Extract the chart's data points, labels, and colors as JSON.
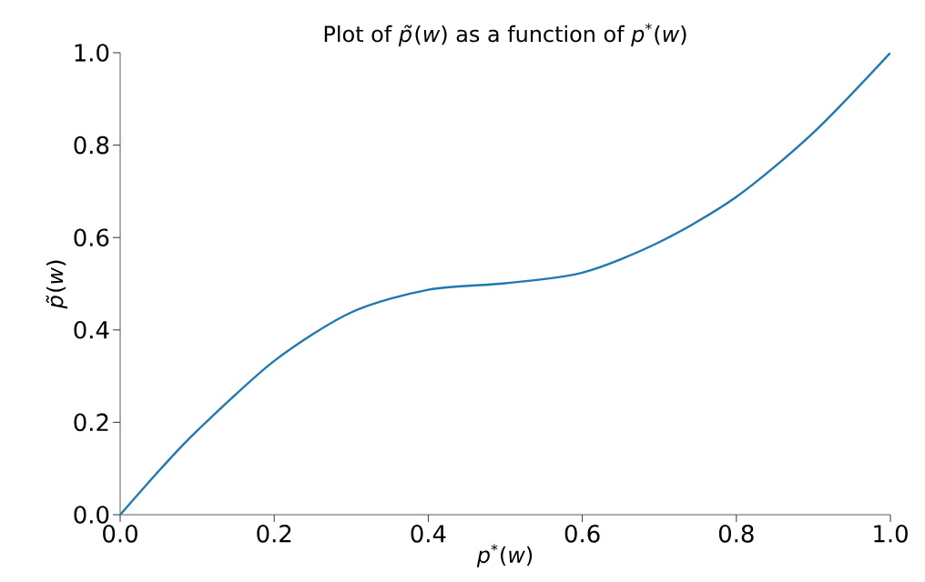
{
  "chart_data": {
    "type": "line",
    "title": "Plot of *p̃*(*w*) as a function of *p*$^{*}$(*w*)",
    "xlabel": "*p*$^{*}$(*w*)",
    "ylabel": "*p̃*(*w*)",
    "x": [
      0,
      0.053,
      0.1,
      0.2,
      0.3,
      0.4,
      0.5,
      0.6,
      0.7,
      0.8,
      0.9,
      1.0
    ],
    "series": [
      {
        "color": "#1f77b4",
        "values": [
          0,
          0.1,
          0.182,
          0.333,
          0.438,
          0.487,
          0.501,
          0.524,
          0.59,
          0.688,
          0.827,
          1.0
        ]
      }
    ],
    "xlim": [
      0,
      1
    ],
    "ylim": [
      0,
      1
    ],
    "xticks": [
      {
        "value": 0,
        "label": "0.0"
      },
      0.2,
      0.4,
      0.6,
      0.8,
      {
        "value": 1,
        "label": "1.0"
      }
    ],
    "yticks": [
      {
        "value": 0,
        "label": "0.0"
      },
      0.2,
      0.4,
      0.6,
      0.8,
      {
        "value": 1,
        "label": "1.0"
      }
    ],
    "grid": false,
    "marker": "none",
    "line_style": "solid"
  }
}
